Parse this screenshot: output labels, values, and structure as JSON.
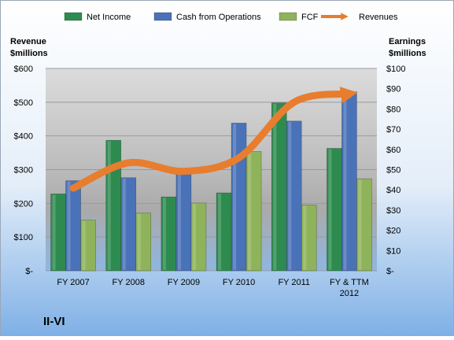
{
  "chart_data": {
    "type": "bar",
    "company": "II-VI",
    "categories": [
      [
        "FY 2007"
      ],
      [
        "FY 2008"
      ],
      [
        "FY 2009"
      ],
      [
        "FY 2010"
      ],
      [
        "FY 2011"
      ],
      [
        "FY & TTM",
        "2012"
      ]
    ],
    "left_axis": {
      "title_lines": [
        "Revenue",
        "$millions"
      ],
      "ylim": [
        0,
        600
      ],
      "ticks": [
        0,
        100,
        200,
        300,
        400,
        500,
        600
      ],
      "tick_labels": [
        "$-",
        "$100",
        "$200",
        "$300",
        "$400",
        "$500",
        "$600"
      ]
    },
    "right_axis": {
      "title_lines": [
        "Earnings",
        "$millions"
      ],
      "ylim": [
        0,
        100
      ],
      "ticks": [
        0,
        10,
        20,
        30,
        40,
        50,
        60,
        70,
        80,
        90,
        100
      ],
      "tick_labels": [
        "$-",
        "$10",
        "$20",
        "$30",
        "$40",
        "$50",
        "$60",
        "$70",
        "$80",
        "$90",
        "$100"
      ]
    },
    "series": [
      {
        "name": "Net Income",
        "kind": "bar",
        "axis": "right",
        "color": "#2e8b4f",
        "values": [
          38,
          64.5,
          36.5,
          38.5,
          83,
          60.5
        ]
      },
      {
        "name": "Cash from Operations",
        "kind": "bar",
        "axis": "right",
        "color": "#4a72b8",
        "values": [
          44.5,
          46,
          49,
          73,
          74,
          88.5
        ]
      },
      {
        "name": "FCF",
        "kind": "bar",
        "axis": "right",
        "color": "#8fb35a",
        "values": [
          25,
          28.5,
          33.5,
          59,
          32.5,
          45.5
        ]
      },
      {
        "name": "Revenues",
        "kind": "line",
        "axis": "left",
        "color": "#e87d2e",
        "values": [
          245,
          320,
          295,
          335,
          500,
          525
        ]
      }
    ],
    "legend_position": "top",
    "grid": true
  }
}
